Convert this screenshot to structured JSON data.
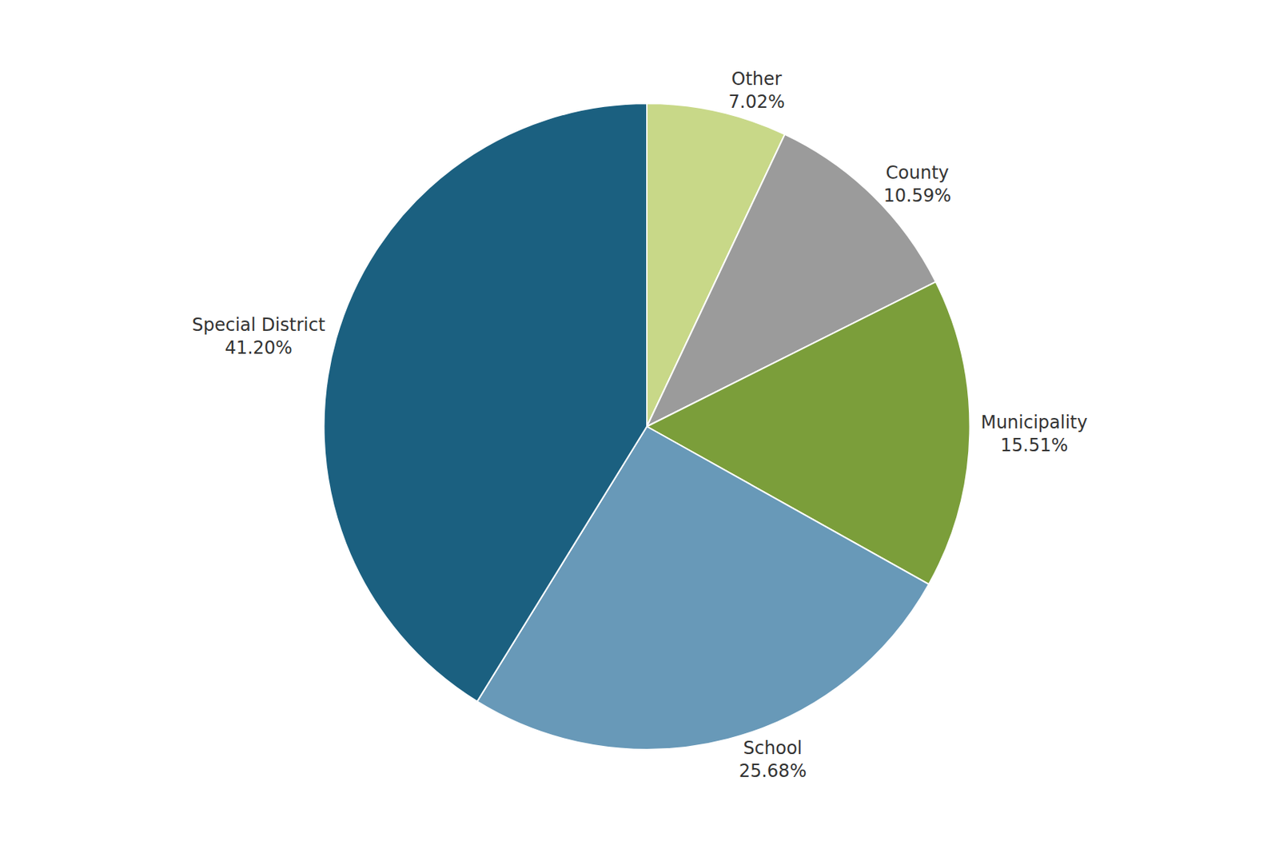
{
  "chart_data": {
    "type": "pie",
    "categories": [
      "Other",
      "County",
      "Municipality",
      "School",
      "Special District"
    ],
    "values": [
      7.02,
      10.59,
      15.51,
      25.68,
      41.2
    ],
    "value_labels": [
      "7.02%",
      "10.59%",
      "15.51%",
      "25.68%",
      "41.20%"
    ],
    "colors": [
      "#c8d888",
      "#9b9b9b",
      "#7b9e3a",
      "#6899b8",
      "#1b6080"
    ],
    "data_labels": true
  }
}
